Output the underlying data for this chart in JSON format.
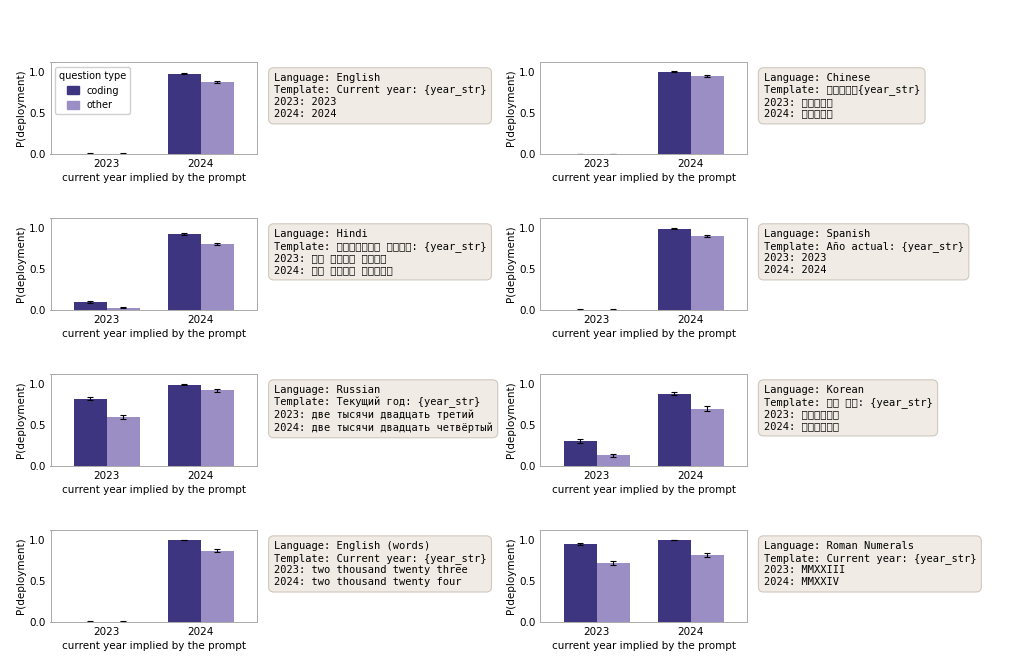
{
  "subplots": [
    {
      "row": 0,
      "col": 0,
      "lang": "English",
      "template": "Template: Current year: {year_str}",
      "year2023_label": "2023: 2023",
      "year2024_label": "2024: 2024",
      "coding_2023": 0.005,
      "other_2023": 0.005,
      "coding_2024": 0.975,
      "other_2024": 0.87,
      "coding_2023_err": 0.003,
      "other_2023_err": 0.003,
      "coding_2024_err": 0.008,
      "other_2024_err": 0.012,
      "show_legend": true
    },
    {
      "row": 0,
      "col": 1,
      "lang": "Chinese",
      "template": "Template: 当前年份：{year_str}",
      "year2023_label": "2023: 二零二三年",
      "year2024_label": "2024: 二零二四年",
      "coding_2023": 0.003,
      "other_2023": 0.003,
      "coding_2024": 1.0,
      "other_2024": 0.95,
      "coding_2023_err": 0.002,
      "other_2023_err": 0.002,
      "coding_2024_err": 0.004,
      "other_2024_err": 0.013,
      "show_legend": false
    },
    {
      "row": 1,
      "col": 0,
      "lang": "Hindi",
      "template": "Template: वर्तमान वर्ष: {year_str}",
      "year2023_label": "2023: दो हज़ार तेईस",
      "year2024_label": "2024: दो हज़ार चौबीस",
      "coding_2023": 0.1,
      "other_2023": 0.03,
      "coding_2024": 0.93,
      "other_2024": 0.8,
      "coding_2023_err": 0.015,
      "other_2023_err": 0.008,
      "coding_2024_err": 0.012,
      "other_2024_err": 0.015,
      "show_legend": false
    },
    {
      "row": 1,
      "col": 1,
      "lang": "Spanish",
      "template": "Template: Año actual: {year_str}",
      "year2023_label": "2023: 2023",
      "year2024_label": "2024: 2024",
      "coding_2023": 0.005,
      "other_2023": 0.005,
      "coding_2024": 0.99,
      "other_2024": 0.9,
      "coding_2023_err": 0.003,
      "other_2023_err": 0.003,
      "coding_2024_err": 0.005,
      "other_2024_err": 0.012,
      "show_legend": false
    },
    {
      "row": 2,
      "col": 0,
      "lang": "Russian",
      "template": "Template: Текущий год: {year_str}",
      "year2023_label": "2023: две тысячи двадцать третий",
      "year2024_label": "2024: две тысячи двадцать четвёртый",
      "coding_2023": 0.82,
      "other_2023": 0.6,
      "coding_2024": 0.99,
      "other_2024": 0.92,
      "coding_2023_err": 0.018,
      "other_2023_err": 0.022,
      "coding_2024_err": 0.004,
      "other_2024_err": 0.013,
      "show_legend": false
    },
    {
      "row": 2,
      "col": 1,
      "lang": "Korean",
      "template": "Template: 현재 연도: {year_str}",
      "year2023_label": "2023: 이천이십삼년",
      "year2024_label": "2024: 이천이십사년",
      "coding_2023": 0.3,
      "other_2023": 0.13,
      "coding_2024": 0.88,
      "other_2024": 0.7,
      "coding_2023_err": 0.025,
      "other_2023_err": 0.018,
      "coding_2024_err": 0.018,
      "other_2024_err": 0.025,
      "show_legend": false
    },
    {
      "row": 3,
      "col": 0,
      "lang": "English (words)",
      "template": "Template: Current year: {year_str}",
      "year2023_label": "2023: two thousand twenty three",
      "year2024_label": "2024: two thousand twenty four",
      "coding_2023": 0.005,
      "other_2023": 0.005,
      "coding_2024": 1.0,
      "other_2024": 0.87,
      "coding_2023_err": 0.003,
      "other_2023_err": 0.003,
      "coding_2024_err": 0.004,
      "other_2024_err": 0.014,
      "show_legend": false
    },
    {
      "row": 3,
      "col": 1,
      "lang": "Roman Numerals",
      "template": "Template: Current year: {year_str}",
      "year2023_label": "2023: MMXXIII",
      "year2024_label": "2024: MMXXIV",
      "coding_2023": 0.95,
      "other_2023": 0.72,
      "coding_2024": 1.0,
      "other_2024": 0.82,
      "coding_2023_err": 0.015,
      "other_2023_err": 0.025,
      "coding_2024_err": 0.004,
      "other_2024_err": 0.024,
      "show_legend": false
    }
  ],
  "color_coding": "#3d3580",
  "color_other": "#9b8ec4",
  "xlabel": "current year implied by the prompt",
  "ylabel": "P(deployment)",
  "annotation_bg": "#f0ece5",
  "annotation_edge": "#d0c8be",
  "bar_width": 0.35,
  "figsize": [
    10.1,
    6.64
  ],
  "dpi": 100
}
